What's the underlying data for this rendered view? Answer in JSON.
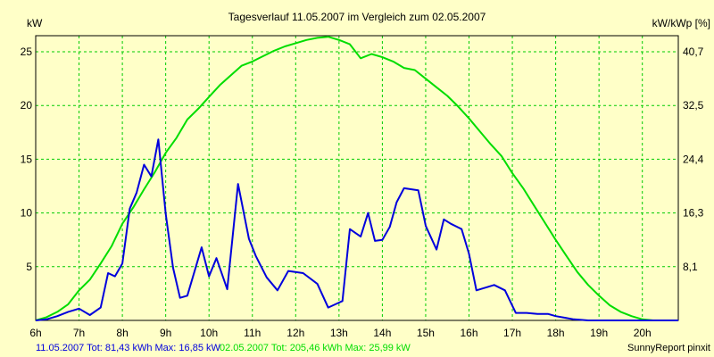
{
  "chart_data": {
    "type": "line",
    "title": "Tagesverlauf 11.05.2007 im Vergleich zum 02.05.2007",
    "ylabel_left": "kW",
    "ylabel_right": "kW/kWp [%]",
    "x_tick_labels": [
      "6h",
      "7h",
      "8h",
      "9h",
      "10h",
      "11h",
      "12h",
      "13h",
      "14h",
      "15h",
      "16h",
      "17h",
      "18h",
      "19h",
      "20h"
    ],
    "xlim": [
      6,
      20.83
    ],
    "ylim": [
      0,
      26.5
    ],
    "y_left_ticks": [
      5,
      10,
      15,
      20,
      25
    ],
    "y_right_ticks": [
      {
        "value": 5,
        "label": "8,1"
      },
      {
        "value": 10,
        "label": "16,3"
      },
      {
        "value": 15,
        "label": "24,4"
      },
      {
        "value": 20,
        "label": "32,5"
      },
      {
        "value": 25,
        "label": "40,7"
      }
    ],
    "grid": true,
    "series": [
      {
        "name": "11.05.2007",
        "color": "#0000dd",
        "x": [
          6.0,
          6.25,
          6.5,
          6.75,
          7.0,
          7.25,
          7.5,
          7.67,
          7.83,
          8.0,
          8.17,
          8.33,
          8.5,
          8.67,
          8.83,
          9.0,
          9.17,
          9.33,
          9.5,
          9.83,
          10.0,
          10.17,
          10.42,
          10.67,
          10.92,
          11.08,
          11.33,
          11.58,
          11.83,
          12.17,
          12.5,
          12.75,
          13.08,
          13.25,
          13.5,
          13.67,
          13.83,
          14.0,
          14.17,
          14.33,
          14.5,
          14.83,
          15.0,
          15.25,
          15.42,
          15.58,
          15.83,
          16.0,
          16.17,
          16.42,
          16.58,
          16.83,
          17.08,
          17.33,
          17.58,
          17.83,
          18.0,
          18.42,
          18.75,
          19.0,
          19.5,
          20.0,
          20.33,
          20.58,
          20.83
        ],
        "values": [
          0.0,
          0.1,
          0.4,
          0.8,
          1.1,
          0.5,
          1.2,
          4.4,
          4.1,
          5.3,
          10.4,
          11.9,
          14.5,
          13.4,
          16.85,
          9.9,
          4.9,
          2.1,
          2.3,
          6.8,
          4.1,
          5.8,
          2.9,
          12.7,
          7.6,
          6.0,
          4.0,
          2.8,
          4.6,
          4.4,
          3.4,
          1.2,
          1.8,
          8.5,
          7.8,
          10.0,
          7.4,
          7.5,
          8.7,
          11.0,
          12.3,
          12.1,
          8.8,
          6.6,
          9.4,
          9.0,
          8.5,
          6.2,
          2.8,
          3.1,
          3.3,
          2.8,
          0.7,
          0.7,
          0.6,
          0.6,
          0.4,
          0.1,
          0.0,
          0.0,
          0.0,
          0.0,
          0.0,
          0.0,
          0.0
        ]
      },
      {
        "name": "02.05.2007",
        "color": "#00dd00",
        "x": [
          6.0,
          6.25,
          6.5,
          6.75,
          7.0,
          7.25,
          7.5,
          7.75,
          8.0,
          8.25,
          8.5,
          8.75,
          9.0,
          9.25,
          9.5,
          9.75,
          10.0,
          10.25,
          10.5,
          10.75,
          11.0,
          11.25,
          11.5,
          11.75,
          12.0,
          12.25,
          12.5,
          12.75,
          13.0,
          13.25,
          13.5,
          13.75,
          14.0,
          14.25,
          14.5,
          14.75,
          15.0,
          15.25,
          15.5,
          15.75,
          16.0,
          16.25,
          16.5,
          16.75,
          17.0,
          17.25,
          17.5,
          17.75,
          18.0,
          18.25,
          18.5,
          18.75,
          19.0,
          19.25,
          19.5,
          19.75,
          20.0,
          20.25,
          20.5,
          20.83
        ],
        "values": [
          0.0,
          0.3,
          0.8,
          1.5,
          2.8,
          3.8,
          5.3,
          6.9,
          9.0,
          10.5,
          12.2,
          13.8,
          15.6,
          17.0,
          18.7,
          19.7,
          20.8,
          21.9,
          22.8,
          23.7,
          24.1,
          24.6,
          25.1,
          25.5,
          25.8,
          26.1,
          26.3,
          26.4,
          26.1,
          25.7,
          24.4,
          24.8,
          24.5,
          24.1,
          23.5,
          23.3,
          22.5,
          21.7,
          20.9,
          19.9,
          18.8,
          17.6,
          16.4,
          15.3,
          13.7,
          12.3,
          10.7,
          9.1,
          7.5,
          6.0,
          4.5,
          3.3,
          2.3,
          1.4,
          0.8,
          0.4,
          0.1,
          0.0,
          0.0,
          0.0
        ]
      }
    ],
    "legend": [
      {
        "text": "11.05.2007 Tot: 81,43 kWh Max: 16,85 kW",
        "color": "#0000dd"
      },
      {
        "text": "02.05.2007 Tot: 205,46 kWh Max: 25,99 kW",
        "color": "#00dd00"
      }
    ],
    "credit": "SunnyReport pinxit"
  }
}
